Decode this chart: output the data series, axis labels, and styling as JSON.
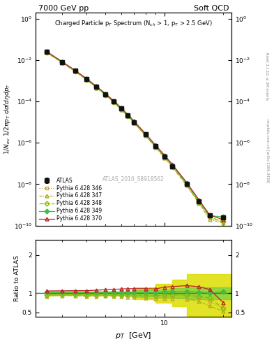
{
  "title_left": "7000 GeV pp",
  "title_right": "Soft QCD",
  "annotation": "Charged Particle p$_T$ Spectrum (N$_{ch}$ > 1, p$_T$ > 2.5 GeV)",
  "watermark": "ATLAS_2010_S8918562",
  "side_text_top": "Rivet 3.1.10, ≥ 3M events",
  "side_text_bot": "mcplots.cern.ch [arXiv:1306.3436]",
  "pt_main": [
    2.5,
    3.0,
    3.5,
    4.0,
    4.5,
    5.0,
    5.5,
    6.0,
    6.5,
    7.0,
    8.0,
    9.0,
    10.0,
    11.0,
    13.0,
    15.0,
    17.0,
    20.0
  ],
  "atlas_y": [
    0.025,
    0.008,
    0.003,
    0.0012,
    0.0005,
    0.00022,
    0.0001,
    4.5e-05,
    2.1e-05,
    1e-05,
    2.5e-06,
    7e-07,
    2.2e-07,
    7.5e-08,
    1e-08,
    1.5e-09,
    3e-10,
    2.5e-10
  ],
  "atlas_yerr": [
    0.002,
    0.0006,
    0.0002,
    0.0001,
    4e-05,
    1.5e-05,
    7e-06,
    3e-06,
    1.5e-06,
    7e-07,
    2e-07,
    5e-08,
    1.5e-08,
    5e-09,
    7e-10,
    1e-10,
    2e-11,
    2e-11
  ],
  "py346_y_ratio": [
    0.94,
    0.96,
    0.97,
    0.96,
    0.96,
    0.955,
    0.95,
    0.955,
    0.952,
    0.95,
    0.94,
    0.929,
    0.955,
    0.96,
    0.95,
    0.87,
    0.78,
    0.6
  ],
  "py347_y_ratio": [
    0.92,
    0.938,
    0.933,
    0.917,
    0.92,
    0.932,
    0.92,
    0.911,
    0.905,
    0.9,
    0.88,
    0.857,
    0.864,
    0.867,
    0.85,
    0.78,
    0.67,
    0.52
  ],
  "py348_y_ratio": [
    0.96,
    0.975,
    0.967,
    0.958,
    0.96,
    0.955,
    0.95,
    0.956,
    0.952,
    0.95,
    0.94,
    0.929,
    0.955,
    0.96,
    0.95,
    0.92,
    0.88,
    0.6
  ],
  "py349_y_ratio": [
    1.02,
    1.025,
    1.033,
    1.017,
    1.02,
    1.023,
    1.02,
    1.022,
    1.024,
    1.02,
    1.02,
    1.014,
    1.045,
    1.04,
    1.05,
    1.033,
    1.0,
    1.04
  ],
  "py370_y_ratio": [
    1.06,
    1.063,
    1.067,
    1.067,
    1.08,
    1.091,
    1.1,
    1.111,
    1.119,
    1.12,
    1.12,
    1.114,
    1.159,
    1.173,
    1.2,
    1.17,
    1.1,
    0.75
  ],
  "color_346": "#c8a040",
  "color_347": "#b0b020",
  "color_348": "#88bb00",
  "color_349": "#44bb44",
  "color_370": "#bb2222",
  "color_atlas": "#111111",
  "color_green_band": "#66cc44",
  "color_yellow_band": "#dddd00",
  "xlim": [
    2.2,
    22.0
  ],
  "ylim_main": [
    1e-10,
    2.0
  ],
  "ylim_ratio": [
    0.38,
    2.4
  ]
}
